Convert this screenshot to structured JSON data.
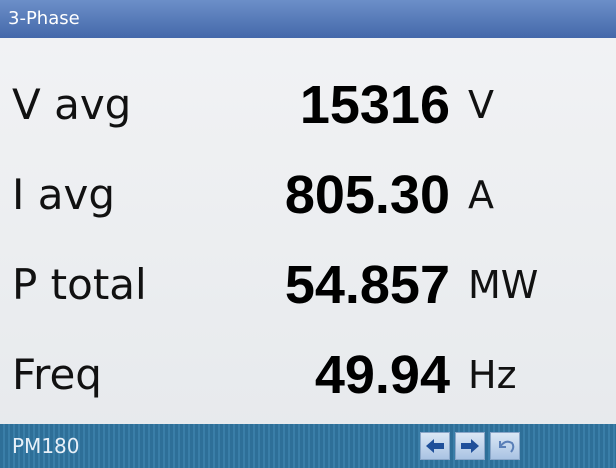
{
  "header": {
    "title": "3-Phase"
  },
  "readings": [
    {
      "label": "V avg",
      "value": "15316",
      "unit": "V"
    },
    {
      "label": "I avg",
      "value": "805.30",
      "unit": "A"
    },
    {
      "label": "P total",
      "value": "54.857",
      "unit": "MW"
    },
    {
      "label": "Freq",
      "value": "49.94",
      "unit": "Hz"
    }
  ],
  "footer": {
    "device": "PM180"
  }
}
